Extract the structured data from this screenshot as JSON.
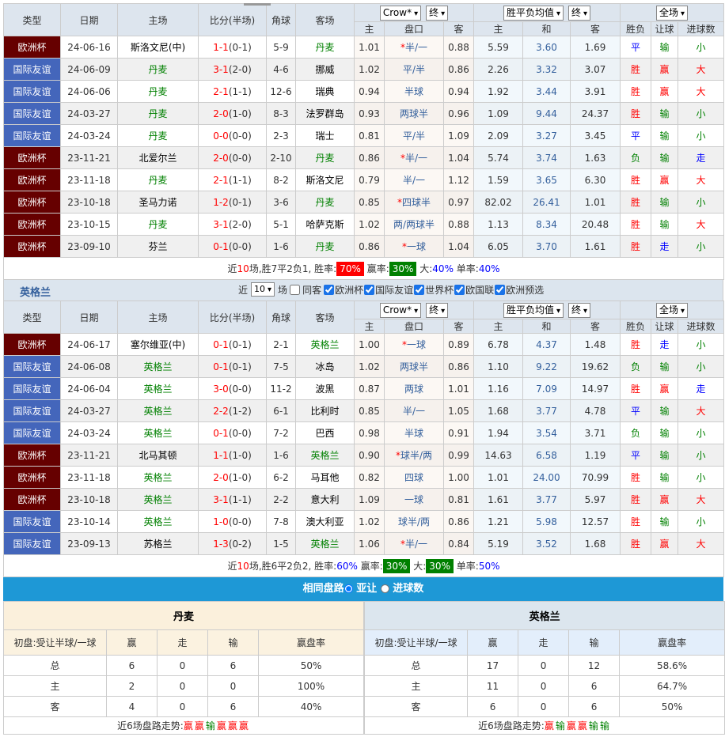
{
  "colors": {
    "euro": "#660000",
    "friendly": "#4466bb",
    "accent": "#1e98d6"
  },
  "headers": {
    "type": "类型",
    "date": "日期",
    "home": "主场",
    "score": "比分(半场)",
    "corner": "角球",
    "away": "客场",
    "company": "Crow*",
    "end1": "终",
    "avg": "胜平负均值",
    "end2": "终",
    "scope": "全场",
    "ah_home": "主",
    "ah_line": "盘口",
    "ah_away": "客",
    "eu_home": "主",
    "eu_draw": "和",
    "eu_away": "客",
    "res": "胜负",
    "hc": "让球",
    "goals": "进球数"
  },
  "table1": {
    "focus": "丹麦",
    "rows": [
      [
        "欧洲杯",
        "24-06-16",
        "斯洛文尼(中)",
        "1-1(0-1)",
        "5-9",
        "丹麦",
        "1.01",
        "*半/一",
        "0.88",
        "5.59",
        "3.60",
        "1.69",
        "平",
        "输",
        "小"
      ],
      [
        "国际友谊",
        "24-06-09",
        "丹麦",
        "3-1(2-0)",
        "4-6",
        "挪威",
        "1.02",
        "平/半",
        "0.86",
        "2.26",
        "3.32",
        "3.07",
        "胜",
        "赢",
        "大"
      ],
      [
        "国际友谊",
        "24-06-06",
        "丹麦",
        "2-1(1-1)",
        "12-6",
        "瑞典",
        "0.94",
        "半球",
        "0.94",
        "1.92",
        "3.44",
        "3.91",
        "胜",
        "赢",
        "大"
      ],
      [
        "国际友谊",
        "24-03-27",
        "丹麦",
        "2-0(1-0)",
        "8-3",
        "法罗群岛",
        "0.93",
        "两球半",
        "0.96",
        "1.09",
        "9.44",
        "24.37",
        "胜",
        "输",
        "小"
      ],
      [
        "国际友谊",
        "24-03-24",
        "丹麦",
        "0-0(0-0)",
        "2-3",
        "瑞士",
        "0.81",
        "平/半",
        "1.09",
        "2.09",
        "3.27",
        "3.45",
        "平",
        "输",
        "小"
      ],
      [
        "欧洲杯",
        "23-11-21",
        "北爱尔兰",
        "2-0(0-0)",
        "2-10",
        "丹麦",
        "0.86",
        "*半/一",
        "1.04",
        "5.74",
        "3.74",
        "1.63",
        "负",
        "输",
        "走"
      ],
      [
        "欧洲杯",
        "23-11-18",
        "丹麦",
        "2-1(1-1)",
        "8-2",
        "斯洛文尼",
        "0.79",
        "半/一",
        "1.12",
        "1.59",
        "3.65",
        "6.30",
        "胜",
        "赢",
        "大"
      ],
      [
        "欧洲杯",
        "23-10-18",
        "圣马力诺",
        "1-2(0-1)",
        "3-6",
        "丹麦",
        "0.85",
        "*四球半",
        "0.97",
        "82.02",
        "26.41",
        "1.01",
        "胜",
        "输",
        "小"
      ],
      [
        "欧洲杯",
        "23-10-15",
        "丹麦",
        "3-1(2-0)",
        "5-1",
        "哈萨克斯",
        "1.02",
        "两/两球半",
        "0.88",
        "1.13",
        "8.34",
        "20.48",
        "胜",
        "输",
        "大"
      ],
      [
        "欧洲杯",
        "23-09-10",
        "芬兰",
        "0-1(0-0)",
        "1-6",
        "丹麦",
        "0.86",
        "*一球",
        "1.04",
        "6.05",
        "3.70",
        "1.61",
        "胜",
        "走",
        "小"
      ]
    ],
    "summary": {
      "p1": "近",
      "n": "10",
      "p2": "场,胜7平2负1, 胜率:",
      "win": "70%",
      "p3": " 赢率:",
      "ying": "30%",
      "p4": " 大:",
      "big": "40%",
      "p5": " 单率:",
      "odd": "40%"
    }
  },
  "team2": {
    "name": "英格兰",
    "near": "近",
    "count": "10",
    "chang": "场",
    "same_away": "同客",
    "filters": [
      "欧洲杯",
      "国际友谊",
      "世界杯",
      "欧国联",
      "欧洲预选"
    ]
  },
  "table2": {
    "focus": "英格兰",
    "rows": [
      [
        "欧洲杯",
        "24-06-17",
        "塞尔维亚(中)",
        "0-1(0-1)",
        "2-1",
        "英格兰",
        "1.00",
        "*一球",
        "0.89",
        "6.78",
        "4.37",
        "1.48",
        "胜",
        "走",
        "小"
      ],
      [
        "国际友谊",
        "24-06-08",
        "英格兰",
        "0-1(0-1)",
        "7-5",
        "冰岛",
        "1.02",
        "两球半",
        "0.86",
        "1.10",
        "9.22",
        "19.62",
        "负",
        "输",
        "小"
      ],
      [
        "国际友谊",
        "24-06-04",
        "英格兰",
        "3-0(0-0)",
        "11-2",
        "波黑",
        "0.87",
        "两球",
        "1.01",
        "1.16",
        "7.09",
        "14.97",
        "胜",
        "赢",
        "走"
      ],
      [
        "国际友谊",
        "24-03-27",
        "英格兰",
        "2-2(1-2)",
        "6-1",
        "比利时",
        "0.85",
        "半/一",
        "1.05",
        "1.68",
        "3.77",
        "4.78",
        "平",
        "输",
        "大"
      ],
      [
        "国际友谊",
        "24-03-24",
        "英格兰",
        "0-1(0-0)",
        "7-2",
        "巴西",
        "0.98",
        "半球",
        "0.91",
        "1.94",
        "3.54",
        "3.71",
        "负",
        "输",
        "小"
      ],
      [
        "欧洲杯",
        "23-11-21",
        "北马其顿",
        "1-1(1-0)",
        "1-6",
        "英格兰",
        "0.90",
        "*球半/两",
        "0.99",
        "14.63",
        "6.58",
        "1.19",
        "平",
        "输",
        "小"
      ],
      [
        "欧洲杯",
        "23-11-18",
        "英格兰",
        "2-0(1-0)",
        "6-2",
        "马耳他",
        "0.82",
        "四球",
        "1.00",
        "1.01",
        "24.00",
        "70.99",
        "胜",
        "输",
        "小"
      ],
      [
        "欧洲杯",
        "23-10-18",
        "英格兰",
        "3-1(1-1)",
        "2-2",
        "意大利",
        "1.09",
        "一球",
        "0.81",
        "1.61",
        "3.77",
        "5.97",
        "胜",
        "赢",
        "大"
      ],
      [
        "国际友谊",
        "23-10-14",
        "英格兰",
        "1-0(0-0)",
        "7-8",
        "澳大利亚",
        "1.02",
        "球半/两",
        "0.86",
        "1.21",
        "5.98",
        "12.57",
        "胜",
        "输",
        "小"
      ],
      [
        "国际友谊",
        "23-09-13",
        "苏格兰",
        "1-3(0-2)",
        "1-5",
        "英格兰",
        "1.06",
        "*半/一",
        "0.84",
        "5.19",
        "3.52",
        "1.68",
        "胜",
        "赢",
        "大"
      ]
    ],
    "summary": {
      "p1": "近",
      "n": "10",
      "p2": "场,胜6平2负2, 胜率:",
      "win": "60%",
      "p3": " 赢率:",
      "ying": "30%",
      "p4": " 大:",
      "big": "30%",
      "p5": " 单率:",
      "odd": "50%"
    }
  },
  "same": {
    "title": "相同盘路",
    "opt1": "亚让",
    "opt2": "进球数"
  },
  "left": {
    "team": "丹麦",
    "cols": [
      "初盘:受让半球/一球",
      "赢",
      "走",
      "输",
      "赢盘率"
    ],
    "rows": [
      [
        "总",
        "6",
        "0",
        "6",
        "50%"
      ],
      [
        "主",
        "2",
        "0",
        "0",
        "100%"
      ],
      [
        "客",
        "4",
        "0",
        "6",
        "40%"
      ]
    ],
    "trend_label": "近6场盘路走势:",
    "trend": [
      "赢",
      "赢",
      "输",
      "赢",
      "赢",
      "赢"
    ]
  },
  "right": {
    "team": "英格兰",
    "cols": [
      "初盘:受让半球/一球",
      "赢",
      "走",
      "输",
      "赢盘率"
    ],
    "rows": [
      [
        "总",
        "17",
        "0",
        "12",
        "58.6%"
      ],
      [
        "主",
        "11",
        "0",
        "6",
        "64.7%"
      ],
      [
        "客",
        "6",
        "0",
        "6",
        "50%"
      ]
    ],
    "trend_label": "近6场盘路走势:",
    "trend": [
      "赢",
      "输",
      "赢",
      "赢",
      "输",
      "输"
    ]
  }
}
